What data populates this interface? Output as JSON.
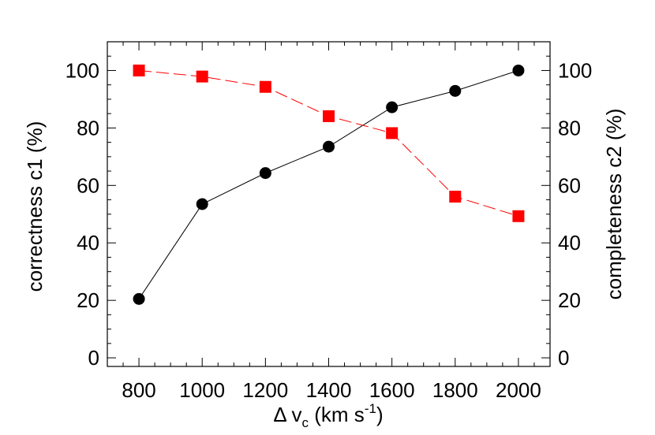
{
  "chart_data": {
    "type": "line",
    "x": [
      800,
      1000,
      1200,
      1400,
      1600,
      1800,
      2000
    ],
    "xlim": [
      700,
      2100
    ],
    "xticks": [
      800,
      1000,
      1200,
      1400,
      1600,
      1800,
      2000
    ],
    "xlabel": {
      "prefix": "Δ v",
      "subscript": "c",
      "middle": " (km s",
      "superscript": "-1",
      "suffix": ")"
    },
    "y_left": {
      "label": "correctness c1 (%)",
      "lim": [
        -3,
        110
      ],
      "ticks": [
        0,
        20,
        40,
        60,
        80,
        100
      ]
    },
    "y_right": {
      "label": "completeness c2 (%)",
      "lim": [
        -3,
        110
      ],
      "ticks": [
        0,
        20,
        40,
        60,
        80,
        100
      ]
    },
    "series": [
      {
        "axis": "left",
        "values": [
          20.5,
          53.5,
          64.3,
          73.5,
          87.2,
          92.9,
          100
        ],
        "color": "#000000",
        "marker": "circle",
        "line": "solid"
      },
      {
        "axis": "right",
        "values": [
          100,
          97.9,
          94.3,
          84.1,
          78.2,
          56.1,
          49.3
        ],
        "color": "#ff0000",
        "marker": "square",
        "line": "dashed"
      }
    ]
  }
}
